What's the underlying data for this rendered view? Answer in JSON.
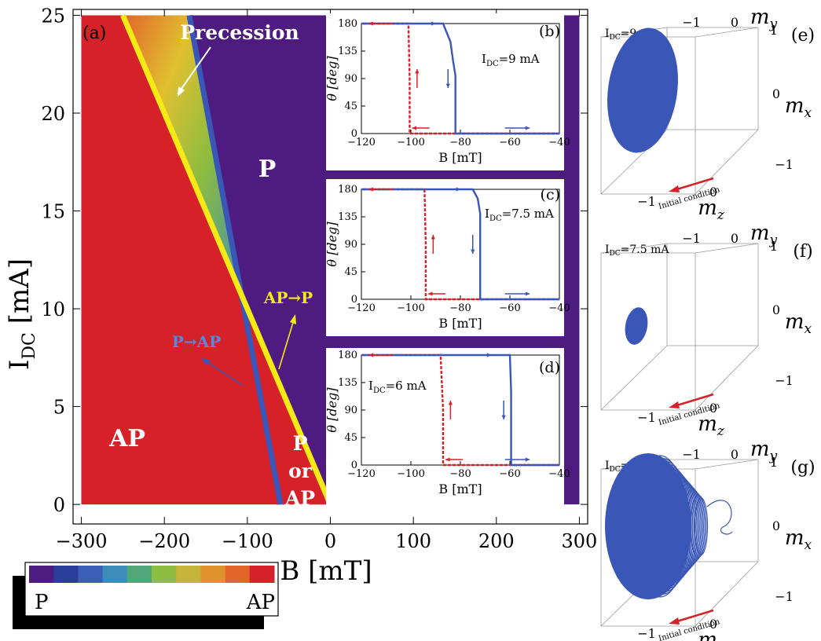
{
  "chart_data": [
    {
      "panel": "(a)",
      "type": "heatmap",
      "xlabel": "B [mT]",
      "ylabel": "I_DC [mA]",
      "xlim": [
        -310,
        310
      ],
      "ylim": [
        -1,
        25.3
      ],
      "xticks": [
        -300,
        -200,
        -100,
        0,
        100,
        200,
        300
      ],
      "yticks": [
        0,
        5,
        10,
        15,
        20,
        25
      ],
      "colors": {
        "P": "#4e1c81",
        "AP": "#d52127",
        "yellow_line": "#f5ea16",
        "blue_line": "#3a56b7"
      },
      "boundaries": [
        {
          "name": "AP→P",
          "points": [
            [
              0,
              0
            ],
            [
              -250,
              25
            ]
          ]
        },
        {
          "name": "P→AP",
          "points": [
            [
              -60,
              0
            ],
            [
              -170,
              25
            ]
          ]
        }
      ],
      "regions": [
        "AP",
        "P",
        "P or AP",
        "Precession"
      ],
      "labels": {
        "ap": "AP",
        "p": "P",
        "p_or_ap_1": "P",
        "p_or_ap_2": "or",
        "p_or_ap_3": "AP",
        "precession": "Precession",
        "ap_to_p": "AP→P",
        "p_to_ap": "P→AP"
      },
      "colorbar": {
        "min_label": "P",
        "max_label": "AP",
        "colors": [
          "#4e1c81",
          "#2c3e9a",
          "#3a5fb4",
          "#3e8db8",
          "#52a77a",
          "#8cbc40",
          "#c4b43a",
          "#e0922c",
          "#e2652a",
          "#d52127"
        ]
      }
    },
    {
      "panel": "(b)",
      "type": "line",
      "annotation": "I_DC = 9 mA",
      "xlabel": "B [mT]",
      "ylabel": "θ [deg]",
      "xlim": [
        -120,
        -40
      ],
      "ylim": [
        0,
        180
      ],
      "xticks": [
        -120,
        -100,
        -80,
        -60,
        -40
      ],
      "yticks": [
        0,
        45,
        90,
        135,
        180
      ],
      "series": [
        {
          "color": "#d52127",
          "dashed": true,
          "x": [
            -40,
            -100.5,
            -100.5,
            -101,
            -120
          ],
          "y": [
            0,
            0,
            90,
            180,
            180
          ]
        },
        {
          "color": "#3a56b7",
          "dashed": false,
          "x": [
            -120,
            -87,
            -84,
            -83,
            -82,
            -82,
            -40
          ],
          "y": [
            180,
            180,
            150,
            120,
            95,
            0,
            0
          ]
        }
      ]
    },
    {
      "panel": "(c)",
      "type": "line",
      "annotation": "I_DC = 7.5 mA",
      "xlabel": "B [mT]",
      "ylabel": "θ [deg]",
      "xlim": [
        -120,
        -40
      ],
      "ylim": [
        0,
        180
      ],
      "xticks": [
        -120,
        -100,
        -80,
        -60,
        -40
      ],
      "yticks": [
        0,
        45,
        90,
        135,
        180
      ],
      "series": [
        {
          "color": "#d52127",
          "dashed": true,
          "x": [
            -40,
            -94,
            -94,
            -94.5,
            -120
          ],
          "y": [
            0,
            0,
            90,
            180,
            180
          ]
        },
        {
          "color": "#3a56b7",
          "dashed": false,
          "x": [
            -120,
            -75,
            -73,
            -72,
            -72,
            -40
          ],
          "y": [
            180,
            180,
            165,
            140,
            0,
            0
          ]
        }
      ]
    },
    {
      "panel": "(d)",
      "type": "line",
      "annotation": "I_DC = 6 mA",
      "xlabel": "B [mT]",
      "ylabel": "θ [deg]",
      "xlim": [
        -120,
        -40
      ],
      "ylim": [
        0,
        180
      ],
      "xticks": [
        -120,
        -100,
        -80,
        -60,
        -40
      ],
      "yticks": [
        0,
        45,
        90,
        135,
        180
      ],
      "series": [
        {
          "color": "#d52127",
          "dashed": true,
          "x": [
            -40,
            -87,
            -87,
            -88,
            -120
          ],
          "y": [
            0,
            0,
            90,
            180,
            180
          ]
        },
        {
          "color": "#3a56b7",
          "dashed": false,
          "x": [
            -120,
            -60,
            -59.5,
            -59.5,
            -40
          ],
          "y": [
            180,
            180,
            120,
            0,
            0
          ]
        }
      ]
    }
  ],
  "inset_labels": {
    "xlabel": "B [mT]",
    "ylabel": "θ [deg]",
    "ann_b": "I_DC = 9 mA",
    "ann_c": "I_DC = 7.5 mA",
    "ann_d": "I_DC = 6 mA"
  },
  "panel_letters": {
    "a": "(a)",
    "b": "(b)",
    "c": "(c)",
    "d": "(d)",
    "e": "(e)",
    "f": "(f)",
    "g": "(g)"
  },
  "cube_panels": [
    {
      "panel": "(e)",
      "current": "I_DC = 9 mA"
    },
    {
      "panel": "(f)",
      "current": "I_DC = 7.5 mA"
    },
    {
      "panel": "(g)",
      "current": "I_DC = 6 mA"
    }
  ],
  "cube_labels": {
    "my": "m_y",
    "mx": "m_x",
    "mz": "m_z",
    "tick_neg1": "−1",
    "tick_0": "0",
    "tick_1": "1",
    "initial_condition": "Initial condition"
  },
  "colorbar": {
    "min_label": "P",
    "max_label": "AP"
  }
}
